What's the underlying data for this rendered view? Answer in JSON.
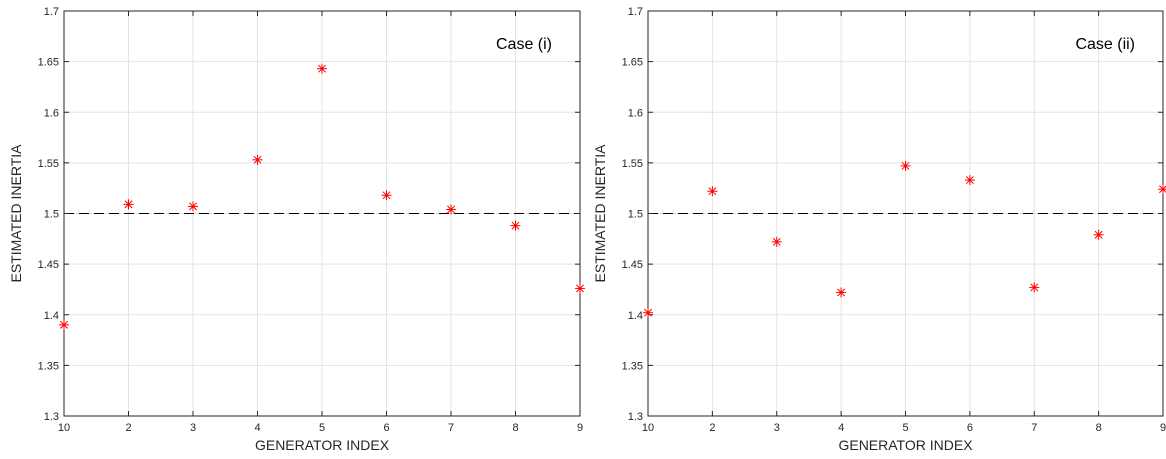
{
  "chart_data": [
    {
      "type": "scatter",
      "annotation": "Case (i)",
      "xlabel": "GENERATOR INDEX",
      "ylabel": "ESTIMATED INERTIA",
      "x_tick_labels": [
        "10",
        "2",
        "3",
        "4",
        "5",
        "6",
        "7",
        "8",
        "9"
      ],
      "ylim": [
        1.3,
        1.7
      ],
      "y_ticks": [
        "1.3",
        "1.35",
        "1.4",
        "1.45",
        "1.5",
        "1.55",
        "1.6",
        "1.65",
        "1.7"
      ],
      "grid": true,
      "reference_line": 1.5,
      "marker": "*",
      "marker_color": "#ff0000",
      "values": [
        1.39,
        1.509,
        1.507,
        1.553,
        1.643,
        1.518,
        1.504,
        1.488,
        1.426
      ]
    },
    {
      "type": "scatter",
      "annotation": "Case (ii)",
      "xlabel": "GENERATOR INDEX",
      "ylabel": "ESTIMATED INERTIA",
      "x_tick_labels": [
        "10",
        "2",
        "3",
        "4",
        "5",
        "6",
        "7",
        "8",
        "9"
      ],
      "ylim": [
        1.3,
        1.7
      ],
      "y_ticks": [
        "1.3",
        "1.35",
        "1.4",
        "1.45",
        "1.5",
        "1.55",
        "1.6",
        "1.65",
        "1.7"
      ],
      "grid": true,
      "reference_line": 1.5,
      "marker": "*",
      "marker_color": "#ff0000",
      "values": [
        1.402,
        1.522,
        1.472,
        1.422,
        1.547,
        1.533,
        1.427,
        1.479,
        1.524
      ]
    }
  ]
}
